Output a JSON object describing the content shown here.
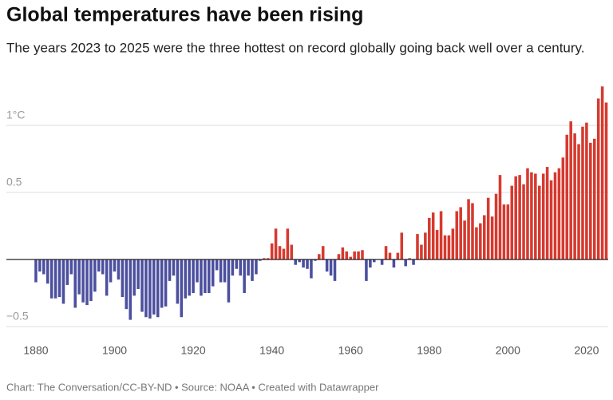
{
  "chart_data": {
    "type": "bar",
    "title": "Global temperatures have been rising",
    "subtitle": "The years 2023 to 2025 were the three hottest on record globally going back well over a century.",
    "footer": "Chart: The Conversation/CC-BY-ND • Source: NOAA • Created with Datawrapper",
    "positive_color": "#d63a2f",
    "negative_color": "#4b4f9e",
    "x": [
      1880,
      1881,
      1882,
      1883,
      1884,
      1885,
      1886,
      1887,
      1888,
      1889,
      1890,
      1891,
      1892,
      1893,
      1894,
      1895,
      1896,
      1897,
      1898,
      1899,
      1900,
      1901,
      1902,
      1903,
      1904,
      1905,
      1906,
      1907,
      1908,
      1909,
      1910,
      1911,
      1912,
      1913,
      1914,
      1915,
      1916,
      1917,
      1918,
      1919,
      1920,
      1921,
      1922,
      1923,
      1924,
      1925,
      1926,
      1927,
      1928,
      1929,
      1930,
      1931,
      1932,
      1933,
      1934,
      1935,
      1936,
      1937,
      1938,
      1939,
      1940,
      1941,
      1942,
      1943,
      1944,
      1945,
      1946,
      1947,
      1948,
      1949,
      1950,
      1951,
      1952,
      1953,
      1954,
      1955,
      1956,
      1957,
      1958,
      1959,
      1960,
      1961,
      1962,
      1963,
      1964,
      1965,
      1966,
      1967,
      1968,
      1969,
      1970,
      1971,
      1972,
      1973,
      1974,
      1975,
      1976,
      1977,
      1978,
      1979,
      1980,
      1981,
      1982,
      1983,
      1984,
      1985,
      1986,
      1987,
      1988,
      1989,
      1990,
      1991,
      1992,
      1993,
      1994,
      1995,
      1996,
      1997,
      1998,
      1999,
      2000,
      2001,
      2002,
      2003,
      2004,
      2005,
      2006,
      2007,
      2008,
      2009,
      2010,
      2011,
      2012,
      2013,
      2014,
      2015,
      2016,
      2017,
      2018,
      2019,
      2020,
      2021,
      2022,
      2023,
      2024,
      2025
    ],
    "values": [
      -0.17,
      -0.09,
      -0.11,
      -0.18,
      -0.29,
      -0.29,
      -0.28,
      -0.33,
      -0.19,
      -0.11,
      -0.36,
      -0.26,
      -0.32,
      -0.34,
      -0.31,
      -0.24,
      -0.09,
      -0.11,
      -0.27,
      -0.17,
      -0.09,
      -0.15,
      -0.28,
      -0.37,
      -0.45,
      -0.27,
      -0.22,
      -0.39,
      -0.43,
      -0.44,
      -0.41,
      -0.43,
      -0.36,
      -0.35,
      -0.16,
      -0.12,
      -0.33,
      -0.43,
      -0.29,
      -0.27,
      -0.25,
      -0.17,
      -0.27,
      -0.25,
      -0.25,
      -0.2,
      -0.08,
      -0.17,
      -0.17,
      -0.32,
      -0.12,
      -0.07,
      -0.12,
      -0.25,
      -0.12,
      -0.16,
      -0.11,
      -0.01,
      0.01,
      0.01,
      0.12,
      0.23,
      0.1,
      0.08,
      0.23,
      0.11,
      -0.04,
      -0.02,
      -0.06,
      -0.07,
      -0.14,
      -0.01,
      0.04,
      0.1,
      -0.09,
      -0.12,
      -0.16,
      0.04,
      0.09,
      0.06,
      0.02,
      0.06,
      0.06,
      0.07,
      -0.16,
      -0.06,
      -0.02,
      0,
      -0.04,
      0.1,
      0.05,
      -0.06,
      0.05,
      0.2,
      -0.05,
      0.01,
      -0.04,
      0.19,
      0.11,
      0.2,
      0.31,
      0.35,
      0.22,
      0.36,
      0.18,
      0.18,
      0.23,
      0.36,
      0.39,
      0.29,
      0.45,
      0.42,
      0.24,
      0.27,
      0.33,
      0.46,
      0.32,
      0.49,
      0.63,
      0.41,
      0.41,
      0.55,
      0.62,
      0.63,
      0.56,
      0.68,
      0.65,
      0.64,
      0.55,
      0.64,
      0.69,
      0.59,
      0.65,
      0.68,
      0.76,
      0.93,
      1.03,
      0.94,
      0.86,
      0.99,
      1.02,
      0.87,
      0.9,
      1.2,
      1.29,
      1.17
    ],
    "xlim": [
      1872.5,
      2025.5
    ],
    "xticks": [
      1880,
      1900,
      1920,
      1940,
      1960,
      1980,
      2000,
      2020
    ],
    "ylim": [
      -0.55,
      1.3
    ],
    "yticks": [
      {
        "value": -0.5,
        "label": "−0.5"
      },
      0.5,
      {
        "value": 1,
        "label": "1°C"
      }
    ],
    "grid": true
  }
}
